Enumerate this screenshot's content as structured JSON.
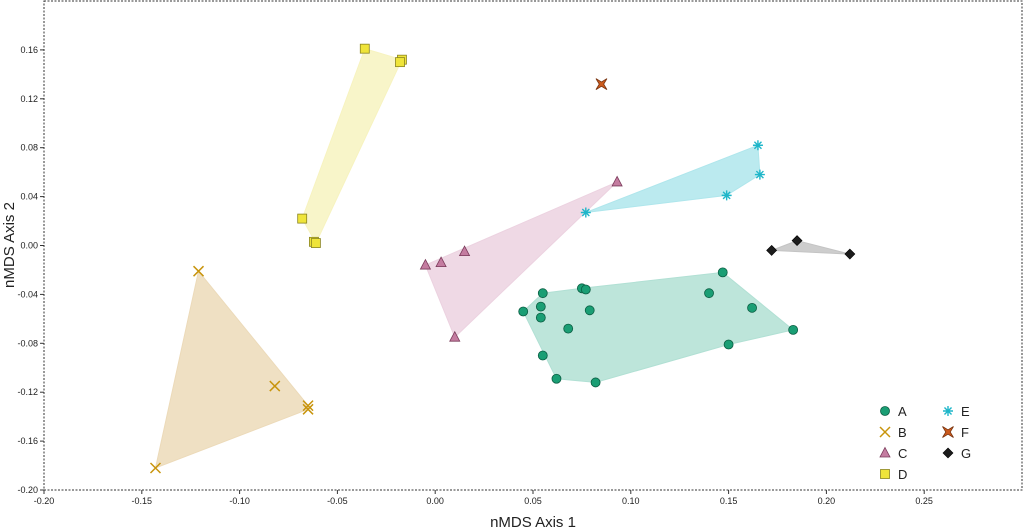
{
  "chart_data": {
    "type": "scatter",
    "title": "",
    "xlabel": "nMDS Axis 1",
    "ylabel": "nMDS Axis 2",
    "xlim": [
      -0.2,
      0.3
    ],
    "ylim": [
      -0.2,
      0.2
    ],
    "xticks": [
      -0.2,
      -0.15,
      -0.1,
      -0.05,
      0.0,
      0.05,
      0.1,
      0.15,
      0.2,
      0.25
    ],
    "xtick_labels": [
      "-0.20",
      "-0.15",
      "-0.10",
      "-0.05",
      "0.00",
      "0.05",
      "0.10",
      "0.15",
      "0.20",
      "0.25"
    ],
    "yticks": [
      0.16,
      0.12,
      0.08,
      0.04,
      0.0,
      -0.04,
      -0.08,
      -0.12,
      -0.16,
      -0.2
    ],
    "ytick_labels": [
      "0.16",
      "0.12",
      "0.08",
      "0.04",
      "0.00",
      "-0.04",
      "-0.08",
      "-0.12",
      "-0.16",
      "-0.20"
    ],
    "legend_position": "bottom-right",
    "series": [
      {
        "name": "A",
        "marker": "circle",
        "color": "#1a9e74",
        "edge": "#0b5e43",
        "hull_fill": "#b1e0d4",
        "points": [
          [
            0.045,
            -0.054
          ],
          [
            0.055,
            -0.039
          ],
          [
            0.054,
            -0.05
          ],
          [
            0.054,
            -0.059
          ],
          [
            0.075,
            -0.035
          ],
          [
            0.077,
            -0.036
          ],
          [
            0.079,
            -0.053
          ],
          [
            0.068,
            -0.068
          ],
          [
            0.055,
            -0.09
          ],
          [
            0.062,
            -0.109
          ],
          [
            0.082,
            -0.112
          ],
          [
            0.147,
            -0.022
          ],
          [
            0.14,
            -0.039
          ],
          [
            0.162,
            -0.051
          ],
          [
            0.15,
            -0.081
          ],
          [
            0.183,
            -0.069
          ]
        ],
        "hull": [
          [
            0.045,
            -0.054
          ],
          [
            0.055,
            -0.039
          ],
          [
            0.075,
            -0.035
          ],
          [
            0.147,
            -0.022
          ],
          [
            0.183,
            -0.069
          ],
          [
            0.15,
            -0.081
          ],
          [
            0.082,
            -0.112
          ],
          [
            0.062,
            -0.109
          ]
        ]
      },
      {
        "name": "B",
        "marker": "x",
        "color": "#c8940c",
        "edge": "#c8940c",
        "hull_fill": "#ecdab9",
        "points": [
          [
            -0.121,
            -0.021
          ],
          [
            -0.082,
            -0.115
          ],
          [
            -0.065,
            -0.131
          ],
          [
            -0.065,
            -0.134
          ],
          [
            -0.143,
            -0.182
          ]
        ],
        "hull": [
          [
            -0.121,
            -0.021
          ],
          [
            -0.065,
            -0.131
          ],
          [
            -0.065,
            -0.134
          ],
          [
            -0.143,
            -0.182
          ]
        ]
      },
      {
        "name": "C",
        "marker": "triangle",
        "color": "#c47ca0",
        "edge": "#7a3a5a",
        "hull_fill": "#ecd2e0",
        "points": [
          [
            -0.005,
            -0.016
          ],
          [
            0.003,
            -0.014
          ],
          [
            0.015,
            -0.005
          ],
          [
            0.01,
            -0.075
          ],
          [
            0.093,
            0.052
          ]
        ],
        "hull": [
          [
            -0.005,
            -0.016
          ],
          [
            0.093,
            0.052
          ],
          [
            0.01,
            -0.075
          ]
        ]
      },
      {
        "name": "D",
        "marker": "square",
        "color": "#efe43a",
        "edge": "#8a8420",
        "hull_fill": "#f7f3c0",
        "points": [
          [
            -0.036,
            0.161
          ],
          [
            -0.017,
            0.152
          ],
          [
            -0.018,
            0.15
          ],
          [
            -0.068,
            0.022
          ],
          [
            -0.062,
            0.003
          ],
          [
            -0.061,
            0.002
          ]
        ],
        "hull": [
          [
            -0.036,
            0.161
          ],
          [
            -0.017,
            0.152
          ],
          [
            -0.061,
            0.002
          ],
          [
            -0.068,
            0.022
          ]
        ]
      },
      {
        "name": "E",
        "marker": "asterisk",
        "color": "#1fb6c9",
        "edge": "#1fb6c9",
        "hull_fill": "#afe6ec",
        "points": [
          [
            0.077,
            0.027
          ],
          [
            0.149,
            0.041
          ],
          [
            0.165,
            0.082
          ],
          [
            0.166,
            0.058
          ]
        ],
        "hull": [
          [
            0.077,
            0.027
          ],
          [
            0.165,
            0.082
          ],
          [
            0.166,
            0.058
          ],
          [
            0.149,
            0.041
          ]
        ]
      },
      {
        "name": "F",
        "marker": "star4",
        "color": "#cc5a1c",
        "edge": "#7a3510",
        "hull_fill": "",
        "points": [
          [
            0.085,
            0.132
          ]
        ],
        "hull": []
      },
      {
        "name": "G",
        "marker": "diamond",
        "color": "#1c1c1c",
        "edge": "#000000",
        "hull_fill": "#c4c4c4",
        "points": [
          [
            0.172,
            -0.004
          ],
          [
            0.185,
            0.004
          ],
          [
            0.212,
            -0.007
          ]
        ],
        "hull": [
          [
            0.172,
            -0.004
          ],
          [
            0.185,
            0.004
          ],
          [
            0.212,
            -0.007
          ]
        ]
      }
    ]
  }
}
